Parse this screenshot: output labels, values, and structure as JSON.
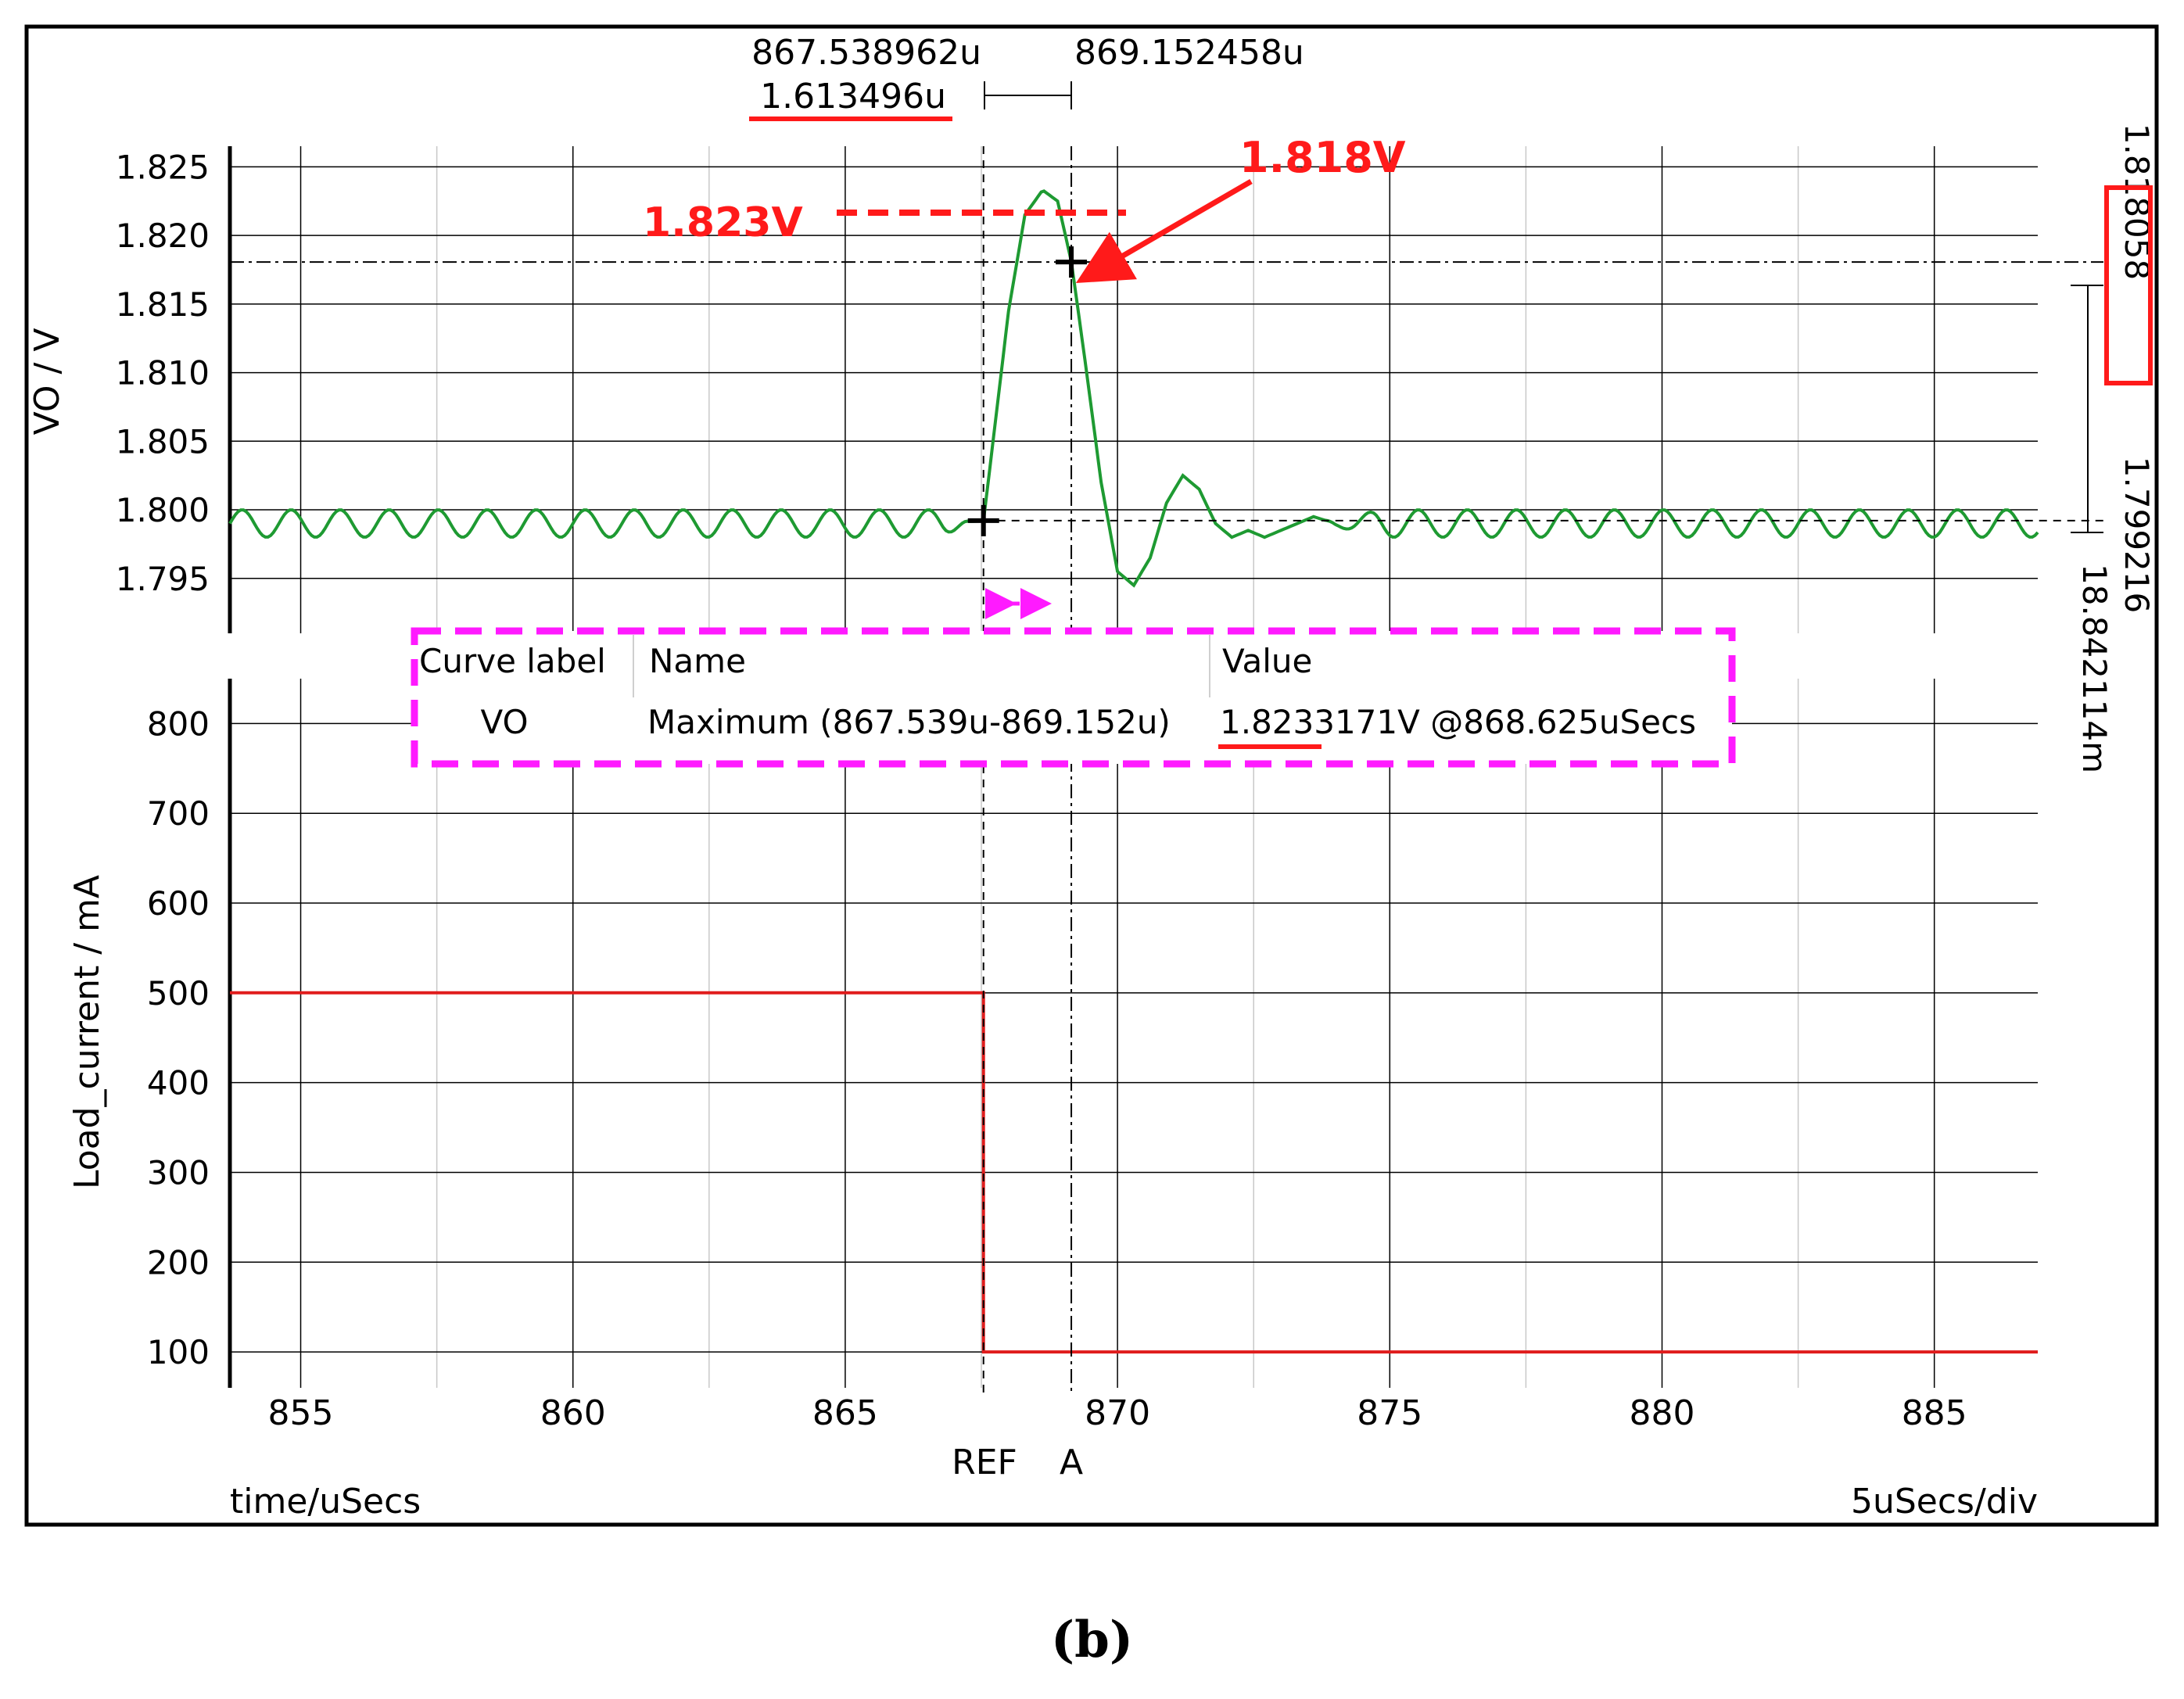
{
  "figure": {
    "caption": "(b)"
  },
  "cursors": {
    "ref_time": "867.538962u",
    "a_time": "869.152458u",
    "delta_time": "1.613496u",
    "ref_label": "REF",
    "a_label": "A",
    "a_value": "1.818058",
    "ref_value": "1.799216",
    "delta_value": "18.842114m"
  },
  "annotations": {
    "peak_label": "1.823V",
    "cursor_value_label": "1.818V"
  },
  "measurement_table": {
    "headers": [
      "Curve label",
      "Name",
      "Value"
    ],
    "row": {
      "curve": "VO",
      "name": "Maximum (867.539u-869.152u)",
      "value": "1.8233171V @868.625uSecs"
    }
  },
  "axes": {
    "x_label": "time/uSecs",
    "x_scale": "5uSecs/div",
    "x_ticks": [
      "855",
      "860",
      "865",
      "870",
      "875",
      "880",
      "885"
    ]
  },
  "colors": {
    "vo_trace": "#1e9a32",
    "load_trace": "#e01c1c",
    "annotation": "#ff1a1a",
    "highlight_box": "#ff1aff"
  },
  "chart_data": [
    {
      "type": "line",
      "ylabel": "VO / V",
      "xlim": [
        853.7,
        886.9
      ],
      "ylim": [
        1.791,
        1.8265
      ],
      "yticks": [
        "1.825",
        "1.820",
        "1.815",
        "1.810",
        "1.805",
        "1.800",
        "1.795"
      ],
      "grid": true,
      "series": [
        {
          "name": "VO",
          "x": [
            853.7,
            855,
            857,
            859,
            861,
            863,
            865,
            866.5,
            867.539,
            867.7,
            868.0,
            868.3,
            868.625,
            868.9,
            869.152,
            869.4,
            869.7,
            870.0,
            870.3,
            870.6,
            870.9,
            871.2,
            871.5,
            871.8,
            872.1,
            872.4,
            872.7,
            873.0,
            873.3,
            873.6,
            874,
            876,
            878,
            880,
            882,
            884,
            886,
            886.9
          ],
          "y": [
            1.799,
            1.799,
            1.799,
            1.799,
            1.799,
            1.799,
            1.799,
            1.799,
            1.7992,
            1.8045,
            1.8145,
            1.8215,
            1.8233,
            1.8225,
            1.8181,
            1.811,
            1.802,
            1.7955,
            1.7945,
            1.7965,
            1.8005,
            1.8025,
            1.8015,
            1.799,
            1.798,
            1.7985,
            1.798,
            1.7985,
            1.799,
            1.7995,
            1.799,
            1.799,
            1.799,
            1.799,
            1.799,
            1.799,
            1.799,
            1.799
          ],
          "ripple_pp": 0.002,
          "ripple_period": 0.9
        }
      ],
      "cursor_points": [
        {
          "name": "REF",
          "x": 867.539,
          "y": 1.799216
        },
        {
          "name": "A",
          "x": 869.152,
          "y": 1.818058
        }
      ]
    },
    {
      "type": "line",
      "ylabel": "Load_current / mA",
      "xlim": [
        853.7,
        886.9
      ],
      "ylim": [
        60,
        850
      ],
      "yticks": [
        "800",
        "700",
        "600",
        "500",
        "400",
        "300",
        "200",
        "100"
      ],
      "grid": true,
      "series": [
        {
          "name": "Load_current",
          "x": [
            853.7,
            867.539,
            867.539,
            886.9
          ],
          "y": [
            500,
            500,
            100,
            100
          ]
        }
      ]
    }
  ]
}
